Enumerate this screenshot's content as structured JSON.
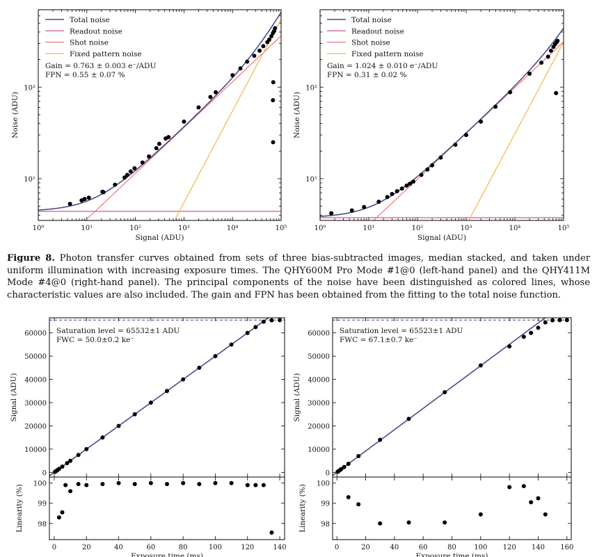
{
  "caption": {
    "label": "Figure 8.",
    "text": "Photon transfer curves obtained from sets of three bias-subtracted images, median stacked, and taken under uniform illumination with increasing exposure times. The QHY600M Pro Mode #1@0 (left-hand panel) and the QHY411M Mode #4@0 (right-hand panel). The principal components of the noise have been distinguished as colored lines, whose characteristic values are also included. The gain and FPN has been obtained from the fitting to the total noise function."
  },
  "colors": {
    "total": "#4b4a8c",
    "readout": "#c9458a",
    "shot": "#ee6f6a",
    "fpn": "#f2b03a",
    "points": "#000000",
    "saturation_line": "#3f3f8a"
  },
  "chart_data": [
    {
      "id": "ptc-left",
      "type": "scatter",
      "scale": "log-log",
      "xlabel": "Signal (ADU)",
      "ylabel": "Noise (ADU)",
      "xlim": [
        1,
        100000
      ],
      "ylim": [
        3.5,
        700
      ],
      "xticks": [
        {
          "v": 1,
          "label": "10⁰"
        },
        {
          "v": 10,
          "label": "10¹"
        },
        {
          "v": 100,
          "label": "10²"
        },
        {
          "v": 1000,
          "label": "10³"
        },
        {
          "v": 10000,
          "label": "10⁴"
        },
        {
          "v": 100000,
          "label": "10⁵"
        }
      ],
      "yticks": [
        {
          "v": 10,
          "label": "10¹"
        },
        {
          "v": 100,
          "label": "10²"
        }
      ],
      "legend": {
        "placement": "top-left",
        "entries": [
          "Total noise",
          "Readout noise",
          "Shot noise",
          "Fixed pattern noise"
        ]
      },
      "annotations": [
        "Gain = 0.763 ± 0.003 e⁻/ADU",
        "FPN = 0.55 ± 0.07 %"
      ],
      "model": {
        "readout": 4.4,
        "gain": 0.763,
        "fpn": 0.0055
      },
      "series": [
        {
          "x": [
            4.5,
            7.8,
            9,
            11,
            21,
            22,
            38,
            60,
            68,
            80,
            96,
            140,
            190,
            270,
            310,
            420,
            480,
            1000,
            2000,
            3500,
            4500,
            10000,
            14500,
            20000,
            28000,
            36000,
            43000,
            52000,
            57000,
            63000,
            68000,
            72000,
            75000,
            69000,
            68000,
            68500
          ],
          "y": [
            5.3,
            5.8,
            6.0,
            6.2,
            7.2,
            7.1,
            8.6,
            10.3,
            11,
            12,
            13,
            15,
            17.5,
            21.5,
            24,
            27.5,
            28.5,
            42,
            60,
            78,
            88,
            135,
            160,
            190,
            220,
            250,
            280,
            310,
            330,
            360,
            390,
            410,
            440,
            113,
            72,
            25
          ]
        }
      ]
    },
    {
      "id": "ptc-right",
      "type": "scatter",
      "scale": "log-log",
      "xlabel": "Signal (ADU)",
      "ylabel": "Noise (ADU)",
      "xlim": [
        1,
        100000
      ],
      "ylim": [
        3.5,
        700
      ],
      "xticks": [
        {
          "v": 1,
          "label": "10⁰"
        },
        {
          "v": 10,
          "label": "10¹"
        },
        {
          "v": 100,
          "label": "10²"
        },
        {
          "v": 1000,
          "label": "10³"
        },
        {
          "v": 10000,
          "label": "10⁴"
        },
        {
          "v": 100000,
          "label": "10⁵"
        }
      ],
      "yticks": [
        {
          "v": 10,
          "label": "10¹"
        },
        {
          "v": 100,
          "label": "10²"
        }
      ],
      "legend": {
        "placement": "top-left",
        "entries": [
          "Total noise",
          "Readout noise",
          "Shot noise",
          "Fixed pattern noise"
        ]
      },
      "annotations": [
        "Gain = 1.024 ± 0.010 e⁻/ADU",
        "FPN = 0.31 ± 0.02 %"
      ],
      "model": {
        "readout": 3.75,
        "gain": 1.024,
        "fpn": 0.0031
      },
      "series": [
        {
          "x": [
            1.7,
            4.5,
            8,
            16,
            24,
            30,
            38,
            48,
            60,
            70,
            82,
            120,
            160,
            200,
            300,
            600,
            1000,
            2000,
            4000,
            8000,
            20000,
            35000,
            48000,
            55000,
            62000,
            67000,
            72000,
            75000,
            70000
          ],
          "y": [
            4.2,
            4.5,
            4.9,
            5.6,
            6.3,
            6.8,
            7.3,
            7.8,
            8.4,
            8.8,
            9.3,
            11,
            12.6,
            14,
            17,
            23.5,
            30,
            42,
            61,
            88,
            140,
            185,
            215,
            250,
            275,
            295,
            310,
            320,
            86
          ]
        }
      ]
    },
    {
      "id": "lin-left",
      "type": "scatter",
      "xlabel": "Exposure time (ms)",
      "ylabel": "Signal (ADU)",
      "xlim": [
        -3,
        143
      ],
      "ylim": [
        -2000,
        66500
      ],
      "xticks": [
        0,
        20,
        40,
        60,
        80,
        100,
        120,
        140
      ],
      "yticks": [
        0,
        10000,
        20000,
        30000,
        40000,
        50000,
        60000
      ],
      "saturation": 65532,
      "fit": {
        "slope": 500,
        "intercept": 0
      },
      "annotations": [
        "Saturation level = 65532±1 ADU",
        "FWC = 50.0±0.2 ke⁻"
      ],
      "series": [
        {
          "x": [
            0.5,
            1,
            2,
            3,
            5,
            8,
            10,
            15,
            20,
            30,
            40,
            50,
            60,
            70,
            80,
            90,
            100,
            110,
            120,
            125,
            130,
            135,
            140
          ],
          "y": [
            250,
            500,
            1000,
            1500,
            2500,
            4000,
            5000,
            7500,
            10000,
            15000,
            20000,
            25000,
            30000,
            35000,
            40000,
            45000,
            50000,
            55000,
            60000,
            62500,
            64800,
            65400,
            65500
          ]
        }
      ]
    },
    {
      "id": "lin-right",
      "type": "scatter",
      "xlabel": "Exposure time (ms)",
      "ylabel": "Signal (ADU)",
      "xlim": [
        -3,
        163
      ],
      "ylim": [
        -2000,
        66500
      ],
      "xticks": [
        0,
        20,
        40,
        60,
        80,
        100,
        120,
        140,
        160
      ],
      "yticks": [
        0,
        10000,
        20000,
        30000,
        40000,
        50000,
        60000
      ],
      "saturation": 65523,
      "fit": {
        "slope": 459,
        "intercept": 0
      },
      "annotations": [
        "Saturation level = 65523±1 ADU",
        "FWC = 67.1±0.7 ke⁻"
      ],
      "series": [
        {
          "x": [
            0.5,
            1,
            2,
            3,
            5,
            8,
            15,
            30,
            50,
            75,
            100,
            120,
            130,
            135,
            140,
            145,
            150,
            155,
            160,
            165
          ],
          "y": [
            250,
            500,
            900,
            1400,
            2300,
            3700,
            7000,
            14000,
            23000,
            34500,
            46000,
            54200,
            58300,
            60000,
            62200,
            64500,
            65400,
            65500,
            65500,
            65500
          ]
        }
      ]
    },
    {
      "id": "linpct-left",
      "type": "scatter",
      "xlabel": "Exposure time (ms)",
      "ylabel": "Linearity (%)",
      "xlim": [
        -3,
        143
      ],
      "ylim": [
        97.2,
        100.3
      ],
      "xticks": [
        0,
        20,
        40,
        60,
        80,
        100,
        120,
        140
      ],
      "yticks": [
        98,
        99,
        100
      ],
      "series": [
        {
          "x": [
            3,
            5,
            7,
            10,
            15,
            20,
            30,
            40,
            50,
            60,
            70,
            80,
            90,
            100,
            110,
            120,
            125,
            130,
            135
          ],
          "y": [
            98.3,
            98.55,
            99.9,
            99.6,
            99.95,
            99.9,
            99.95,
            100.0,
            99.95,
            100.0,
            99.95,
            100.0,
            99.95,
            100.0,
            100.0,
            99.9,
            99.9,
            99.9,
            97.55
          ]
        }
      ]
    },
    {
      "id": "linpct-right",
      "type": "scatter",
      "xlabel": "Exposure time (ms)",
      "ylabel": "Linearity (%)",
      "xlim": [
        -3,
        163
      ],
      "ylim": [
        97.2,
        100.3
      ],
      "xticks": [
        0,
        20,
        40,
        60,
        80,
        100,
        120,
        140,
        160
      ],
      "yticks": [
        98,
        99,
        100
      ],
      "series": [
        {
          "x": [
            8,
            15,
            30,
            50,
            75,
            100,
            120,
            130,
            135,
            140,
            145
          ],
          "y": [
            99.3,
            98.95,
            98.0,
            98.05,
            98.05,
            98.45,
            99.8,
            99.85,
            99.05,
            99.25,
            98.45
          ]
        }
      ]
    }
  ]
}
